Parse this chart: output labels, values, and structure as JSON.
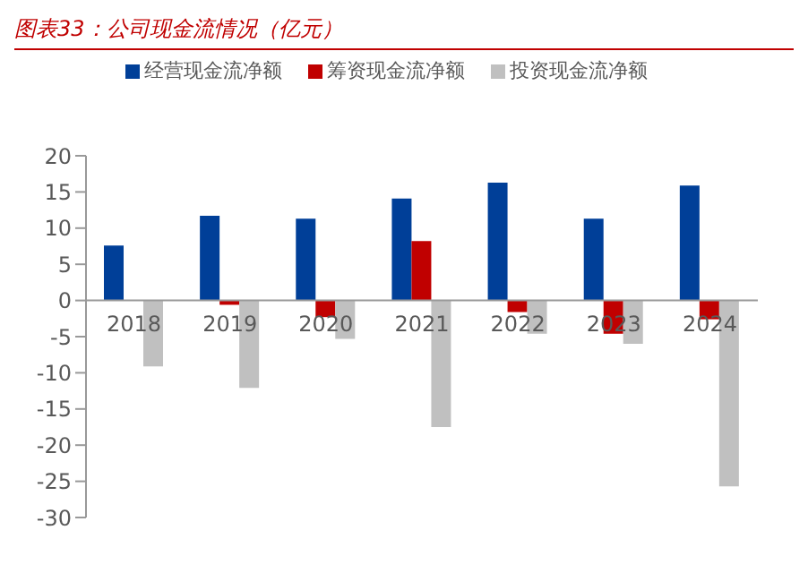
{
  "chart_data": {
    "type": "bar",
    "title": "图表33：公司现金流情况（亿元）",
    "categories": [
      "2018",
      "2019",
      "2020",
      "2021",
      "2022",
      "2023",
      "2024"
    ],
    "series": [
      {
        "name": "经营现金流净额",
        "color": "#003f98",
        "values": [
          7.6,
          11.7,
          11.3,
          14.1,
          16.3,
          11.3,
          15.9
        ]
      },
      {
        "name": "筹资现金流净额",
        "color": "#c00000",
        "values": [
          0,
          -0.6,
          -2.3,
          8.2,
          -1.6,
          -4.6,
          -2.6
        ]
      },
      {
        "name": "投资现金流净额",
        "color": "#c0c0c0",
        "values": [
          -9.1,
          -12.1,
          -5.3,
          -17.5,
          -4.6,
          -6.0,
          -25.7
        ]
      }
    ],
    "ylim": [
      -30,
      20
    ],
    "yticks": [
      -30,
      -25,
      -20,
      -15,
      -10,
      -5,
      0,
      5,
      10,
      15,
      20
    ],
    "grid": false,
    "legend": "top"
  }
}
